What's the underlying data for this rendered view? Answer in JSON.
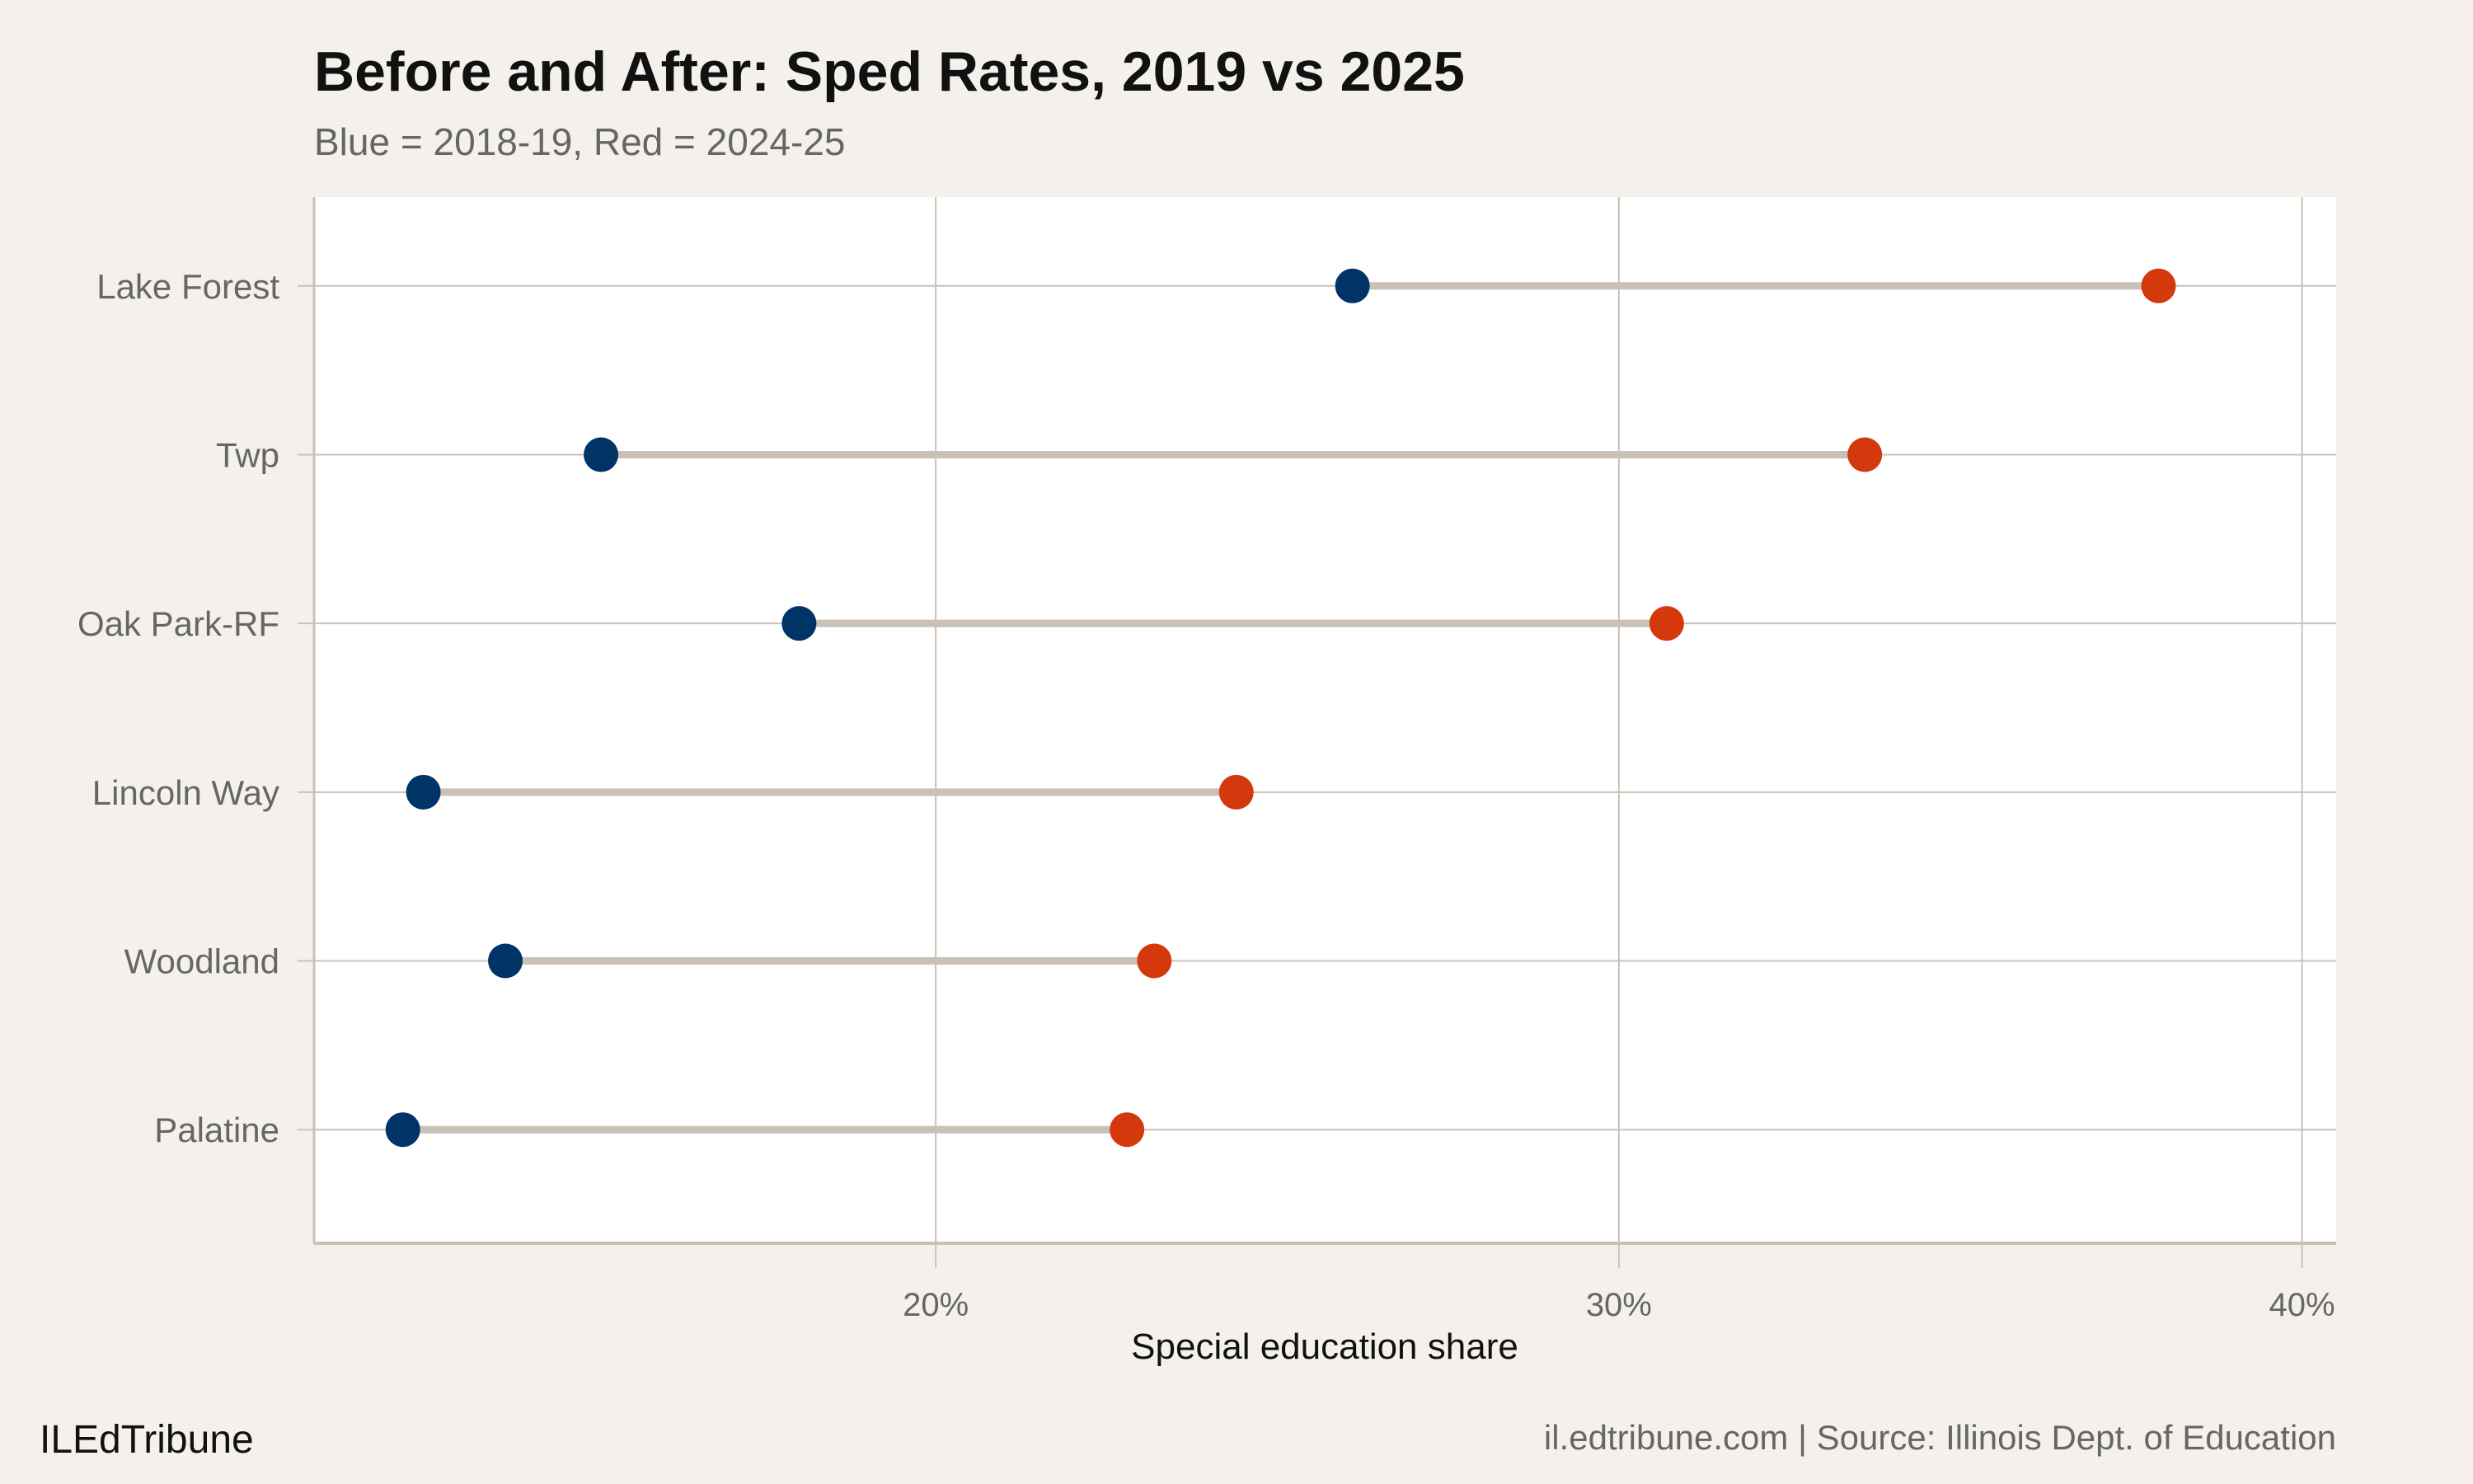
{
  "chart_data": {
    "type": "dumbbell",
    "title": "Before and After: Sped Rates, 2019 vs 2025",
    "subtitle": "Blue = 2018-19, Red = 2024-25",
    "xlabel": "Special education share",
    "ylabel": "",
    "xlim": [
      10.9,
      40.5
    ],
    "x_ticks": [
      20,
      30,
      40
    ],
    "x_tick_labels": [
      "20%",
      "30%",
      "40%"
    ],
    "grid": true,
    "categories": [
      "Lake Forest",
      "Twp",
      "Oak Park-RF",
      "Lincoln Way",
      "Woodland",
      "Palatine"
    ],
    "series": [
      {
        "color": "#003366",
        "values": [
          26.1,
          15.1,
          18.0,
          12.5,
          13.7,
          12.2
        ]
      },
      {
        "color": "#d4380d",
        "values": [
          37.9,
          33.6,
          30.7,
          24.4,
          23.2,
          22.8
        ]
      }
    ],
    "segment_color": "#c9c1b7"
  },
  "footer": {
    "brand": "ILEdTribune",
    "source": "il.edtribune.com | Source: Illinois Dept. of Education"
  }
}
